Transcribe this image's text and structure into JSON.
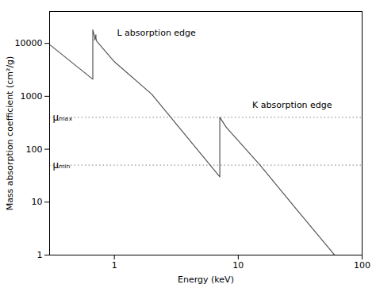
{
  "chart_data": {
    "type": "line",
    "title": "",
    "xlabel": "Energy (keV)",
    "ylabel": "Mass absorption coefficient (cm²/g)",
    "log": true,
    "xlim": [
      0.3,
      100
    ],
    "ylim": [
      1,
      40000
    ],
    "xticks": [
      1,
      10,
      100
    ],
    "yticks": [
      1,
      10,
      100,
      1000,
      10000
    ],
    "grid": false,
    "x": [
      0.3,
      0.67,
      0.67,
      0.695,
      0.695,
      0.71,
      0.71,
      0.72,
      1.0,
      2.0,
      7.1,
      7.1,
      8.0,
      15.0,
      30.0,
      60.0
    ],
    "values": [
      9500,
      2100,
      18000,
      13000,
      11500,
      14500,
      12500,
      11000,
      4500,
      1100,
      30,
      400,
      260,
      50,
      7,
      1.0
    ],
    "color": "#555555",
    "hlines": [
      {
        "value": 400,
        "label": "μₘₐₓ",
        "color": "#999999",
        "line_style": "dotted"
      },
      {
        "value": 50,
        "label": "μₘᵢₙ",
        "color": "#999999",
        "line_style": "dotted"
      }
    ],
    "annotations": [
      {
        "text": "L absorption edge",
        "x": 1.05,
        "y": 18000
      },
      {
        "text": "K absorption edge",
        "x": 13,
        "y": 800
      }
    ]
  }
}
